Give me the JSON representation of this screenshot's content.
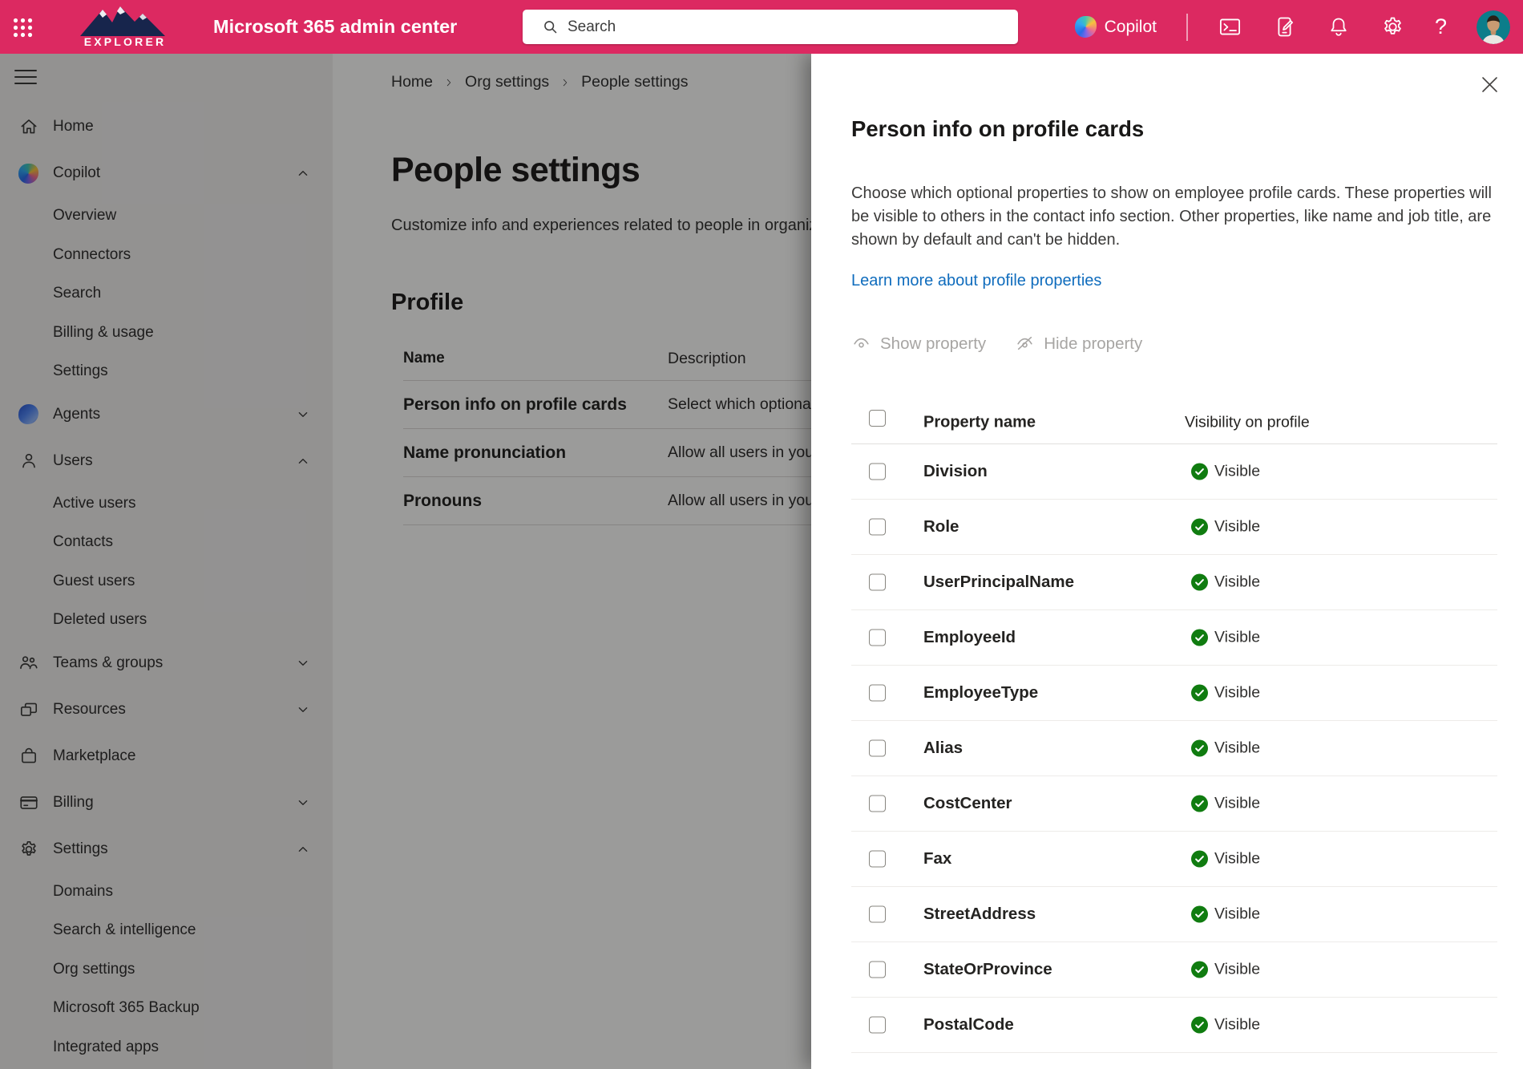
{
  "header": {
    "logo_text": "EXPLORER",
    "app_title": "Microsoft 365 admin center",
    "search_placeholder": "Search",
    "copilot_label": "Copilot",
    "help_label": "?"
  },
  "sidebar": {
    "items": [
      {
        "label": "Home",
        "icon": "home",
        "level": 0
      },
      {
        "label": "Copilot",
        "icon": "copilot",
        "level": 0,
        "chevron": "up"
      },
      {
        "label": "Overview",
        "level": 1
      },
      {
        "label": "Connectors",
        "level": 1
      },
      {
        "label": "Search",
        "level": 1
      },
      {
        "label": "Billing & usage",
        "level": 1
      },
      {
        "label": "Settings",
        "level": 1
      },
      {
        "label": "Agents",
        "icon": "agents",
        "level": 0,
        "chevron": "down"
      },
      {
        "label": "Users",
        "icon": "users",
        "level": 0,
        "chevron": "up"
      },
      {
        "label": "Active users",
        "level": 1
      },
      {
        "label": "Contacts",
        "level": 1
      },
      {
        "label": "Guest users",
        "level": 1
      },
      {
        "label": "Deleted users",
        "level": 1
      },
      {
        "label": "Teams & groups",
        "icon": "teams",
        "level": 0,
        "chevron": "down"
      },
      {
        "label": "Resources",
        "icon": "resources",
        "level": 0,
        "chevron": "down"
      },
      {
        "label": "Marketplace",
        "icon": "marketplace",
        "level": 0
      },
      {
        "label": "Billing",
        "icon": "billing",
        "level": 0,
        "chevron": "down"
      },
      {
        "label": "Settings",
        "icon": "settings",
        "level": 0,
        "chevron": "up"
      },
      {
        "label": "Domains",
        "level": 1
      },
      {
        "label": "Search & intelligence",
        "level": 1
      },
      {
        "label": "Org settings",
        "level": 1
      },
      {
        "label": "Microsoft 365 Backup",
        "level": 1
      },
      {
        "label": "Integrated apps",
        "level": 1
      }
    ]
  },
  "main": {
    "breadcrumb": [
      "Home",
      "Org settings",
      "People settings"
    ],
    "title": "People settings",
    "description": "Customize info and experiences related to people in organization",
    "section_heading": "Profile",
    "table": {
      "columns": {
        "name": "Name",
        "description": "Description"
      },
      "rows": [
        {
          "name": "Person info on profile cards",
          "description": "Select which optional properties are shown on employee profile cards"
        },
        {
          "name": "Name pronunciation",
          "description": "Allow all users in your organization to record name pronunciation"
        },
        {
          "name": "Pronouns",
          "description": "Allow all users in your organization to add pronouns to their profile"
        }
      ]
    }
  },
  "panel": {
    "title": "Person info on profile cards",
    "description": "Choose which optional properties to show on employee profile cards. These properties will be visible to others in the contact info section. Other properties, like name and job title, are shown by default and can't be hidden.",
    "link_label": "Learn more about profile properties",
    "actions": {
      "show": "Show property",
      "hide": "Hide property"
    },
    "table": {
      "columns": {
        "property": "Property name",
        "visibility": "Visibility on profile"
      },
      "status_label": "Visible",
      "rows": [
        "Division",
        "Role",
        "UserPrincipalName",
        "EmployeeId",
        "EmployeeType",
        "Alias",
        "CostCenter",
        "Fax",
        "StreetAddress",
        "StateOrProvince",
        "PostalCode"
      ]
    }
  },
  "colors": {
    "topbar": "#DC2961",
    "status_green": "#107C10",
    "link_blue": "#0F6CBD",
    "disabled_gray": "#A7A5A3"
  }
}
